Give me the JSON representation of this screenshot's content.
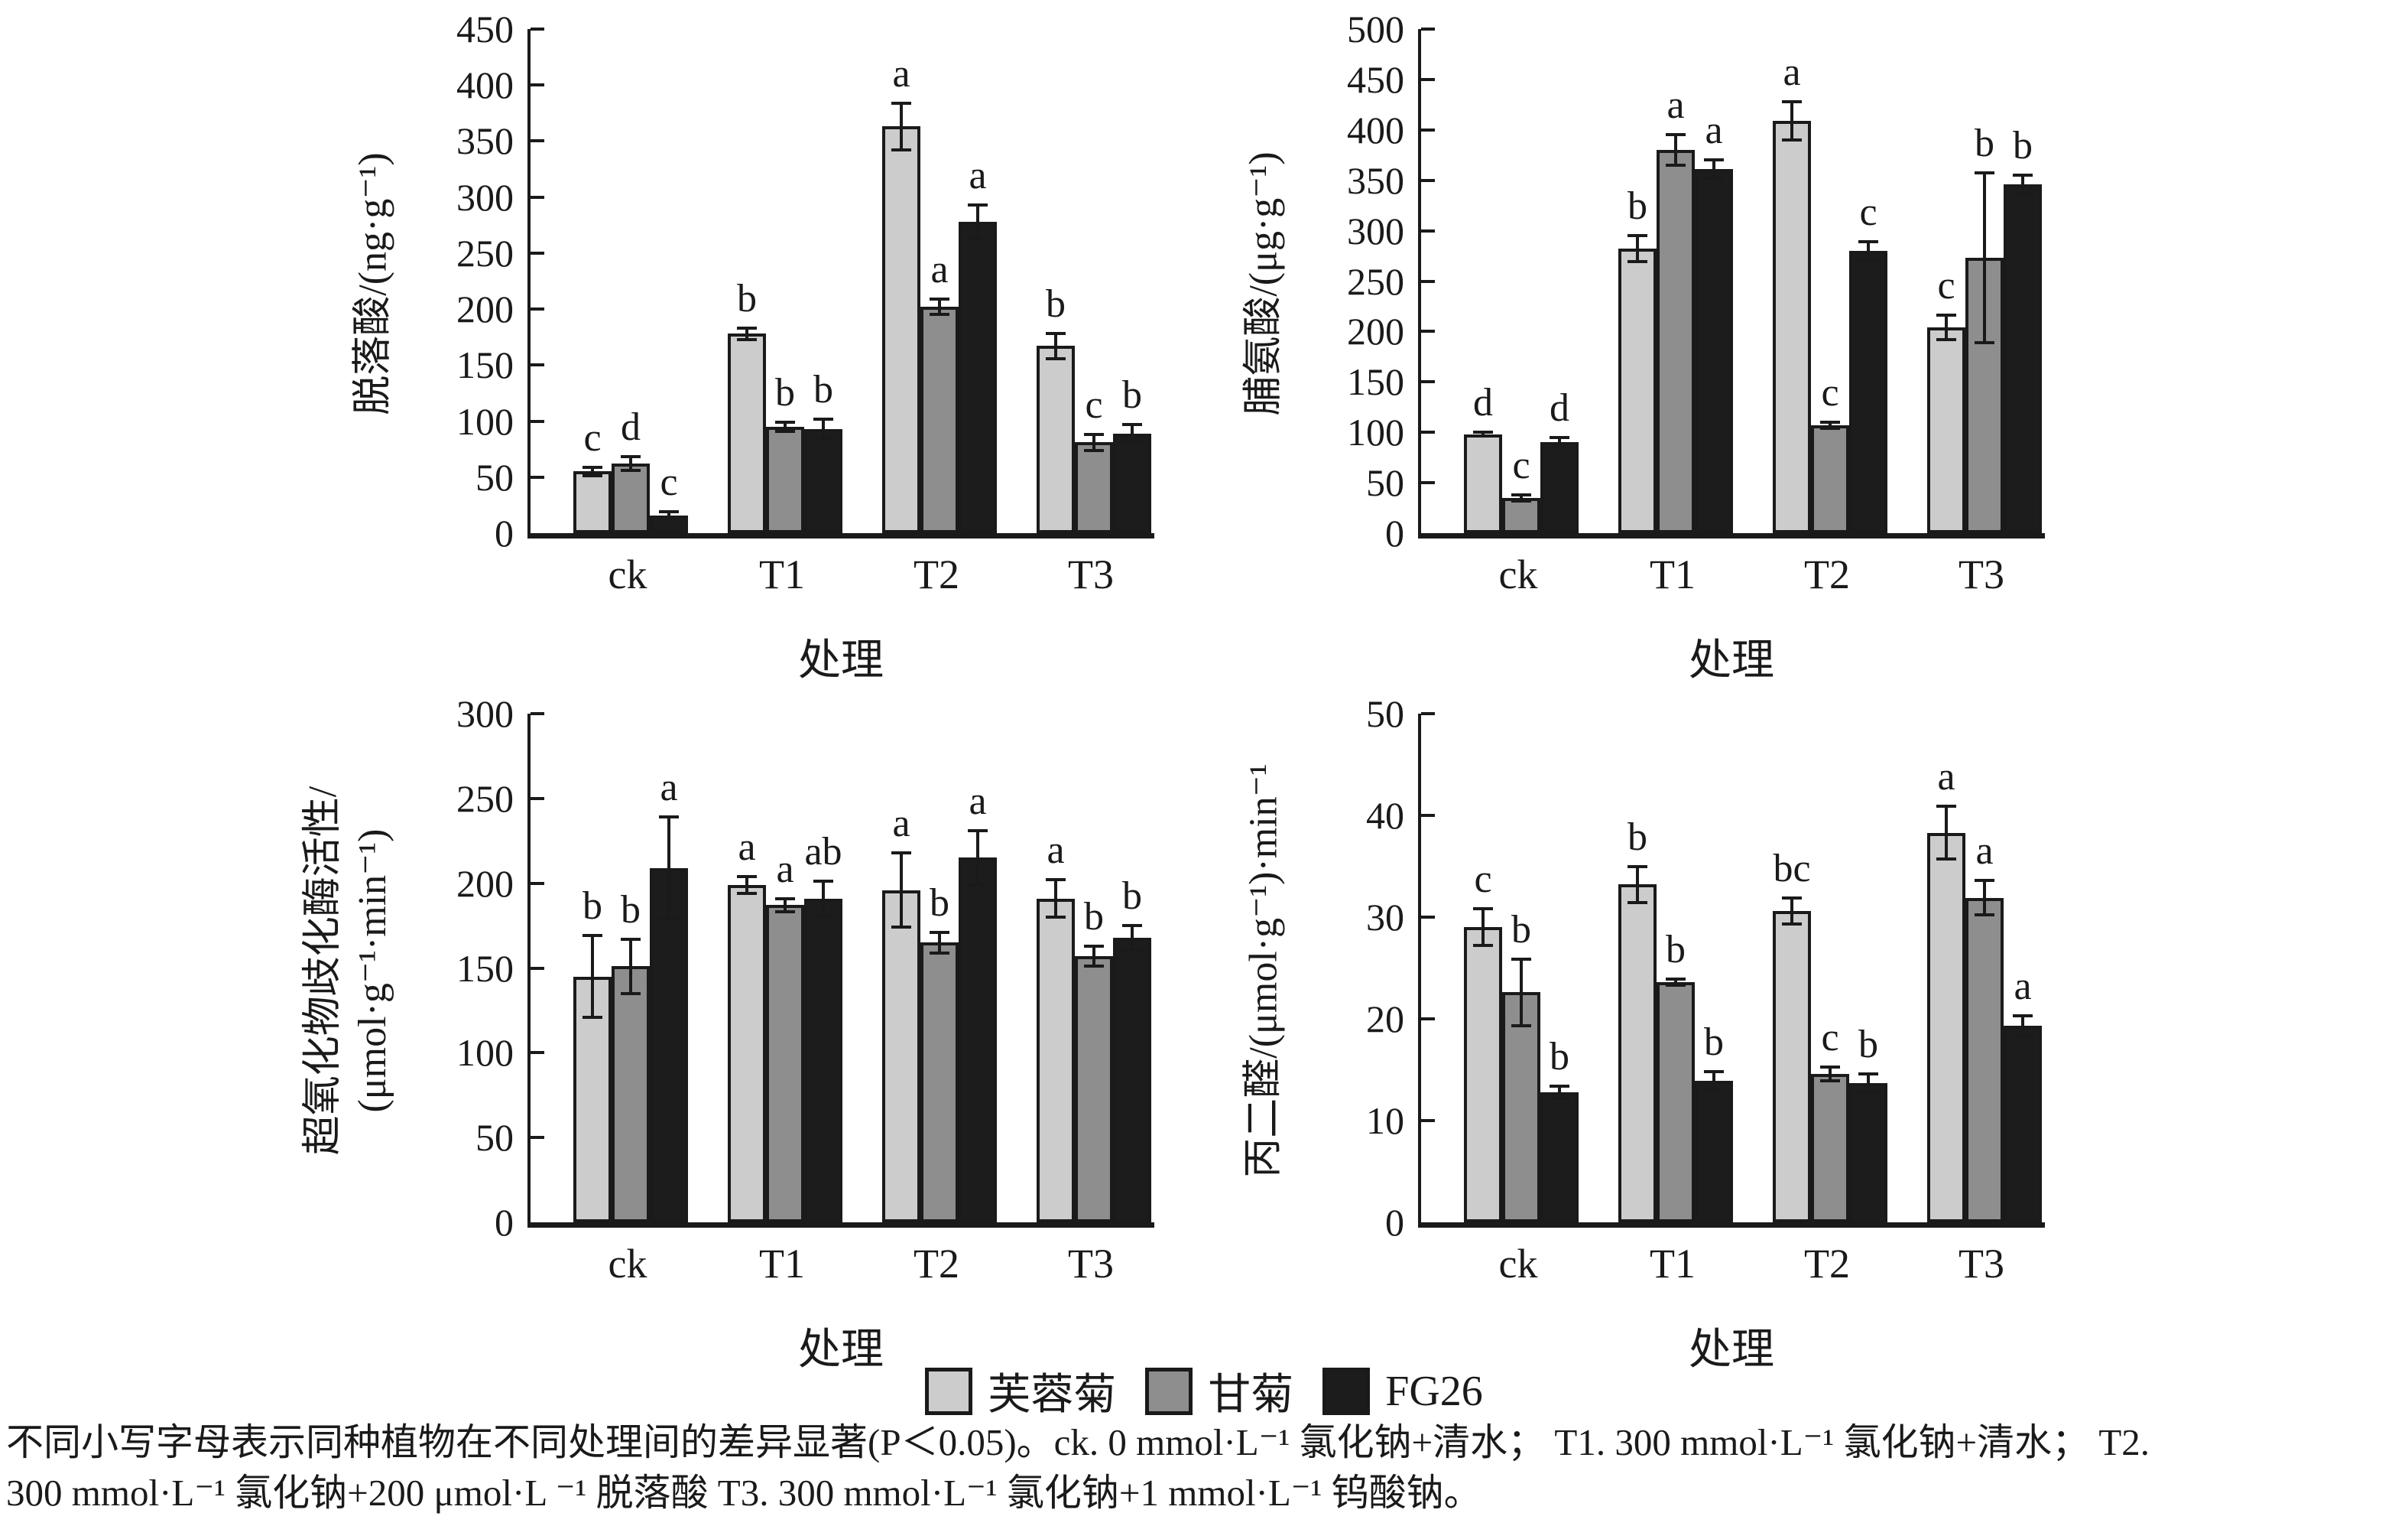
{
  "figure": {
    "xlabel": "处理",
    "categories": [
      "ck",
      "T1",
      "T2",
      "T3"
    ],
    "axis_color": "#1a1a1a",
    "background": "#ffffff"
  },
  "chart_data": [
    {
      "type": "bar",
      "name": "abscisic-acid",
      "title": "",
      "ylabel": "脱落酸/(ng·g⁻¹)",
      "ylabel_lines": [
        "脱落酸/(ng·g⁻¹)"
      ],
      "xlabel": "处理",
      "categories": [
        "ck",
        "T1",
        "T2",
        "T3"
      ],
      "ylim": [
        0,
        450
      ],
      "ytick_step": 50,
      "grid": false,
      "legend_position": "none",
      "series": [
        {
          "name": "芙蓉菊",
          "color": "#cccccc",
          "values": [
            55,
            178,
            363,
            167
          ],
          "errors": [
            4,
            5,
            21,
            11
          ],
          "letters": [
            "c",
            "b",
            "a",
            "b"
          ]
        },
        {
          "name": "甘菊",
          "color": "#8e8e8e",
          "values": [
            62,
            95,
            202,
            81
          ],
          "errors": [
            6,
            4,
            7,
            7
          ],
          "letters": [
            "d",
            "b",
            "a",
            "c"
          ]
        },
        {
          "name": "FG26",
          "color": "#1c1c1c",
          "values": [
            16,
            93,
            278,
            89
          ],
          "errors": [
            3,
            9,
            15,
            8
          ],
          "letters": [
            "c",
            "b",
            "a",
            "b"
          ]
        }
      ]
    },
    {
      "type": "bar",
      "name": "proline",
      "title": "",
      "ylabel": "脯氨酸/(μg·g⁻¹)",
      "ylabel_lines": [
        "脯氨酸/(μg·g⁻¹)"
      ],
      "xlabel": "处理",
      "categories": [
        "ck",
        "T1",
        "T2",
        "T3"
      ],
      "ylim": [
        0,
        500
      ],
      "ytick_step": 50,
      "grid": false,
      "legend_position": "none",
      "series": [
        {
          "name": "芙蓉菊",
          "color": "#cccccc",
          "values": [
            98,
            282,
            409,
            204
          ],
          "errors": [
            2,
            13,
            19,
            12
          ],
          "letters": [
            "d",
            "b",
            "a",
            "c"
          ]
        },
        {
          "name": "甘菊",
          "color": "#8e8e8e",
          "values": [
            35,
            380,
            107,
            273
          ],
          "errors": [
            3,
            15,
            3,
            84
          ],
          "letters": [
            "c",
            "a",
            "c",
            "b"
          ]
        },
        {
          "name": "FG26",
          "color": "#1c1c1c",
          "values": [
            90,
            361,
            280,
            346
          ],
          "errors": [
            5,
            9,
            9,
            9
          ],
          "letters": [
            "d",
            "a",
            "c",
            "b"
          ]
        }
      ]
    },
    {
      "type": "bar",
      "name": "sod-activity",
      "title": "",
      "ylabel": "超氧化物歧化酶活性/(μmol·g⁻¹·min⁻¹)",
      "ylabel_lines": [
        "超氧化物歧化酶活性/",
        "(μmol·g⁻¹·min⁻¹)"
      ],
      "xlabel": "处理",
      "categories": [
        "ck",
        "T1",
        "T2",
        "T3"
      ],
      "ylim": [
        0,
        300
      ],
      "ytick_step": 50,
      "grid": false,
      "legend_position": "none",
      "series": [
        {
          "name": "芙蓉菊",
          "color": "#cccccc",
          "values": [
            145,
            199,
            196,
            191
          ],
          "errors": [
            24,
            5,
            22,
            11
          ],
          "letters": [
            "b",
            "a",
            "a",
            "a"
          ]
        },
        {
          "name": "甘菊",
          "color": "#8e8e8e",
          "values": [
            151,
            187,
            165,
            157
          ],
          "errors": [
            16,
            4,
            6,
            6
          ],
          "letters": [
            "b",
            "a",
            "b",
            "b"
          ]
        },
        {
          "name": "FG26",
          "color": "#1c1c1c",
          "values": [
            209,
            191,
            215,
            168
          ],
          "errors": [
            30,
            10,
            16,
            7
          ],
          "letters": [
            "a",
            "ab",
            "a",
            "b"
          ]
        }
      ]
    },
    {
      "type": "bar",
      "name": "malondialdehyde",
      "title": "",
      "ylabel": "丙二醛/(μmol·g⁻¹)·min⁻¹",
      "ylabel_lines": [
        "丙二醛/(μmol·g⁻¹)·min⁻¹"
      ],
      "xlabel": "处理",
      "categories": [
        "ck",
        "T1",
        "T2",
        "T3"
      ],
      "ylim": [
        0,
        50
      ],
      "ytick_step": 10,
      "grid": false,
      "legend_position": "none",
      "series": [
        {
          "name": "芙蓉菊",
          "color": "#cccccc",
          "values": [
            29.0,
            33.2,
            30.6,
            38.3
          ],
          "errors": [
            1.8,
            1.8,
            1.3,
            2.6
          ],
          "letters": [
            "c",
            "b",
            "bc",
            "a"
          ]
        },
        {
          "name": "甘菊",
          "color": "#8e8e8e",
          "values": [
            22.6,
            23.6,
            14.6,
            31.9
          ],
          "errors": [
            3.3,
            0.3,
            0.7,
            1.7
          ],
          "letters": [
            "b",
            "b",
            "c",
            "a"
          ]
        },
        {
          "name": "FG26",
          "color": "#1c1c1c",
          "values": [
            12.8,
            13.9,
            13.7,
            19.3
          ],
          "errors": [
            0.6,
            0.9,
            0.9,
            1.0
          ],
          "letters": [
            "b",
            "b",
            "b",
            "a"
          ]
        }
      ]
    }
  ],
  "legend": {
    "items": [
      {
        "label": "芙蓉菊",
        "color": "#cccccc"
      },
      {
        "label": "甘菊",
        "color": "#8e8e8e"
      },
      {
        "label": "FG26",
        "color": "#1c1c1c"
      }
    ]
  },
  "caption": {
    "lines": [
      "不同小写字母表示同种植物在不同处理间的差异显著(P＜0.05)。ck. 0 mmol·L⁻¹ 氯化钠+清水； T1. 300 mmol·L⁻¹ 氯化钠+清水； T2.",
      "300 mmol·L⁻¹ 氯化钠+200 μmol·L ⁻¹ 脱落酸  T3. 300 mmol·L⁻¹ 氯化钠+1 mmol·L⁻¹ 钨酸钠。"
    ]
  }
}
